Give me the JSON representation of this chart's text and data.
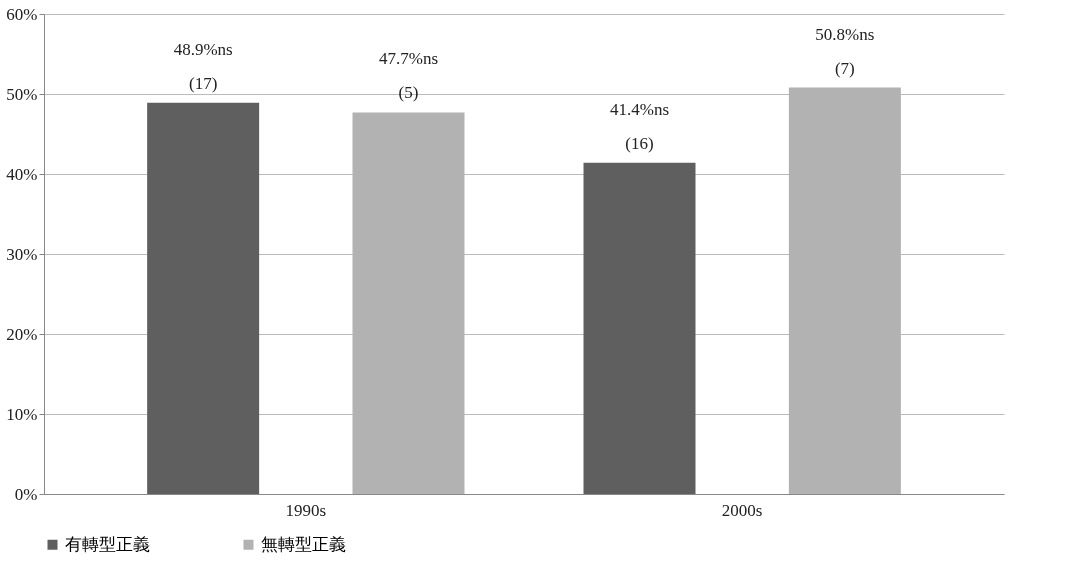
{
  "chart_data": {
    "type": "bar",
    "categories": [
      "1990s",
      "2000s"
    ],
    "series": [
      {
        "name": "有轉型正義",
        "color": "#5f5f5f",
        "values": [
          48.9,
          41.4
        ],
        "value_labels": [
          "48.9%ns\n(17)",
          "41.4%ns\n(16)"
        ]
      },
      {
        "name": "無轉型正義",
        "color": "#b2b2b2",
        "values": [
          47.7,
          50.8
        ],
        "value_labels": [
          "47.7%ns\n(5)",
          "50.8%ns\n(7)"
        ]
      }
    ],
    "ylim": [
      0,
      60
    ],
    "yticks": [
      {
        "value": 0,
        "label": "0%"
      },
      {
        "value": 10,
        "label": "10%"
      },
      {
        "value": 20,
        "label": "20%"
      },
      {
        "value": 30,
        "label": "30%"
      },
      {
        "value": 40,
        "label": "40%"
      },
      {
        "value": 50,
        "label": "50%"
      },
      {
        "value": 60,
        "label": "60%"
      }
    ],
    "grid": "y",
    "legend": "bottom"
  }
}
